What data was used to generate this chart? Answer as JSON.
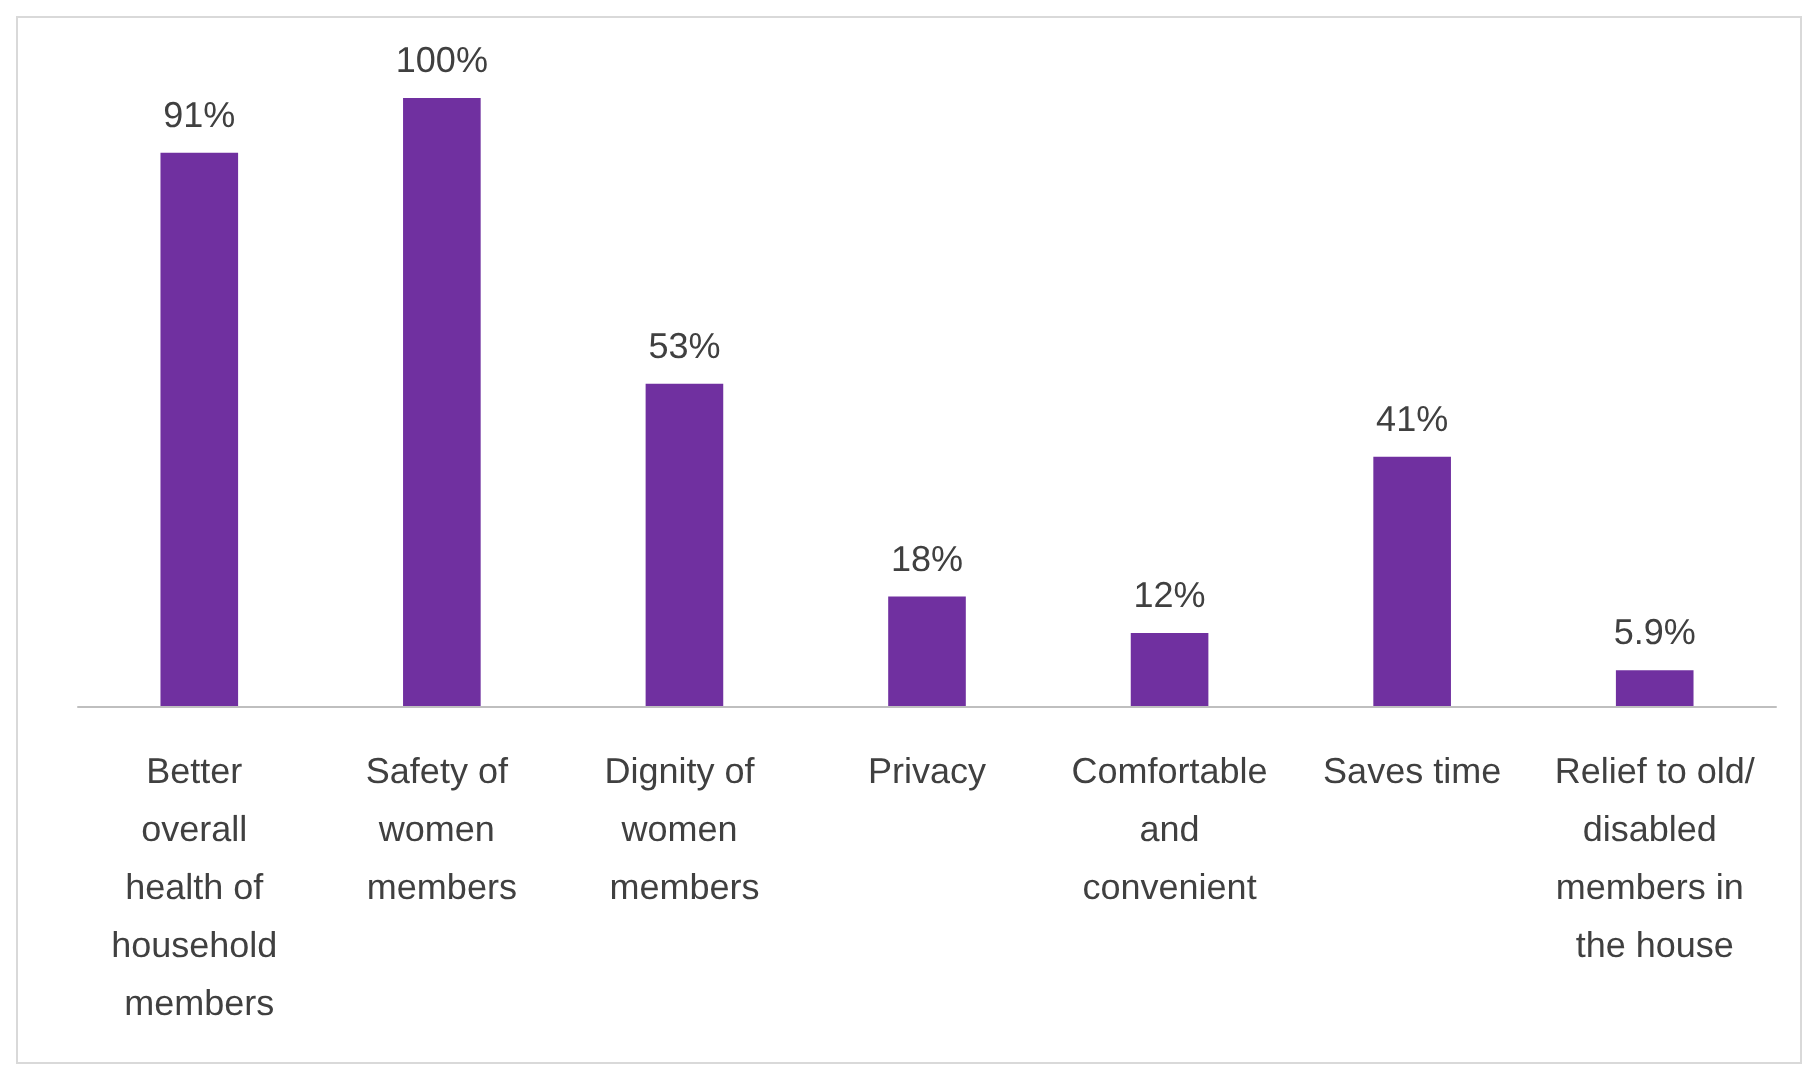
{
  "chart_data": {
    "type": "bar",
    "categories": [
      "Better overall health of household members",
      "Safety of women members",
      "Dignity of women members",
      "Privacy",
      "Comfortable and convenient",
      "Saves time",
      "Relief to old/disabled members in the house"
    ],
    "values": [
      91,
      100,
      53,
      18,
      12,
      41,
      5.9
    ],
    "value_labels": [
      "91%",
      "100%",
      "53%",
      "18%",
      "12%",
      "41%",
      "5.9%"
    ],
    "color": "#7030a0",
    "tick_labels": "x"
  }
}
